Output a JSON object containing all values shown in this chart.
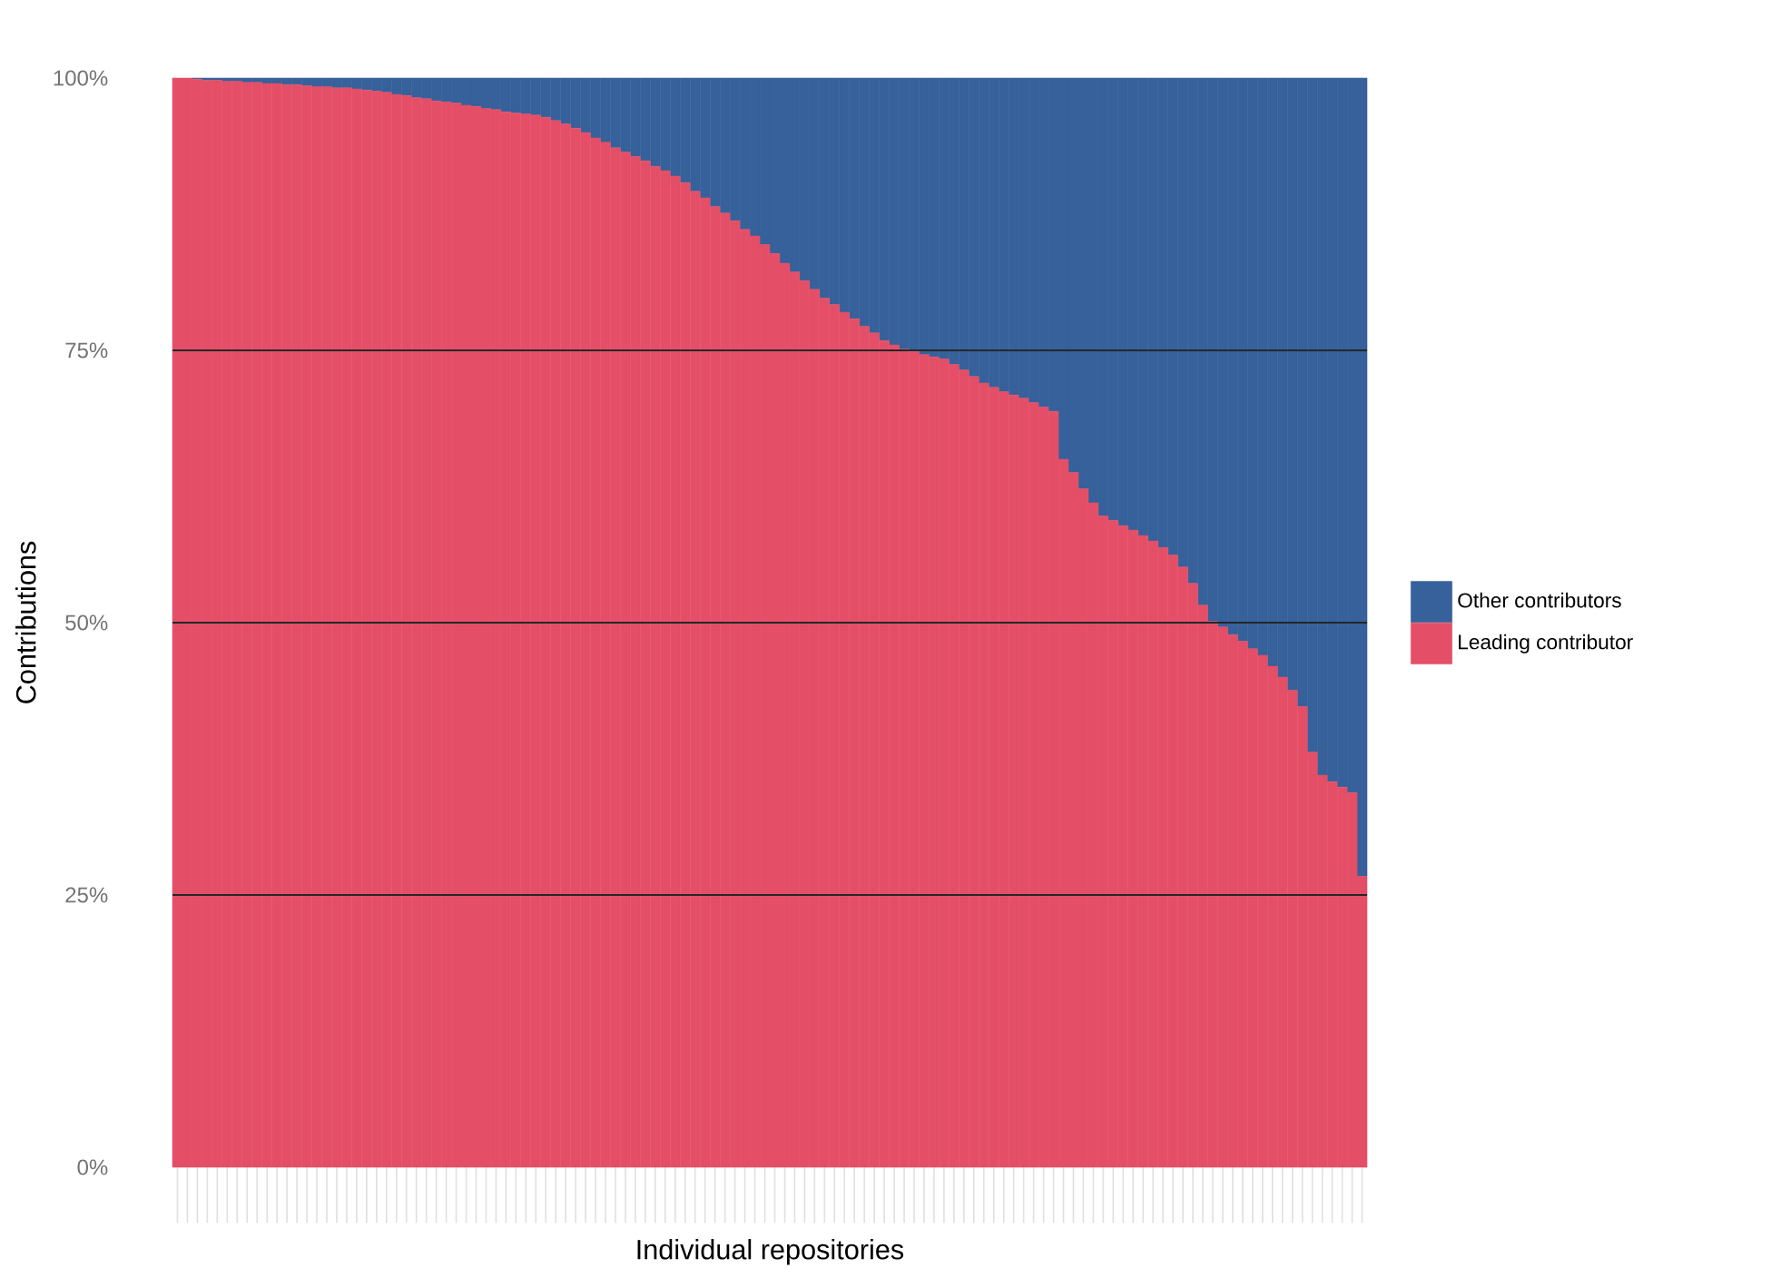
{
  "chart_data": {
    "type": "bar",
    "stacked": true,
    "xlabel": "Individual repositories",
    "ylabel": "Contributions",
    "categories": [
      null,
      null,
      null,
      null,
      null,
      null,
      null,
      null,
      null,
      null,
      null,
      null,
      null,
      null,
      null,
      null,
      null,
      null,
      null,
      null,
      null,
      null,
      null,
      null,
      null,
      null,
      null,
      null,
      null,
      null,
      null,
      null,
      null,
      null,
      null,
      null,
      null,
      null,
      null,
      null,
      null,
      null,
      null,
      null,
      null,
      null,
      null,
      null,
      null,
      null,
      null,
      null,
      null,
      null,
      null,
      null,
      null,
      null,
      null,
      null,
      null,
      null,
      null,
      null,
      null,
      null,
      null,
      null,
      null,
      null,
      null,
      null,
      null,
      null,
      null,
      null,
      null,
      null,
      null,
      null,
      null,
      null,
      null,
      null,
      null,
      null,
      null,
      null,
      null,
      null,
      null,
      null,
      null,
      null,
      null,
      null,
      null,
      null,
      null,
      null,
      null,
      null,
      null,
      null,
      null,
      null,
      null,
      null,
      null,
      null,
      null,
      null,
      null,
      null,
      null,
      null,
      null,
      null,
      null,
      null
    ],
    "series": [
      {
        "name": "Leading contributor",
        "color": "#e44f67",
        "values": [
          100,
          100,
          99.9,
          99.8,
          99.8,
          99.7,
          99.7,
          99.6,
          99.6,
          99.5,
          99.5,
          99.4,
          99.4,
          99.3,
          99.2,
          99.2,
          99.1,
          99.1,
          99.0,
          98.9,
          98.8,
          98.7,
          98.5,
          98.4,
          98.2,
          98.1,
          97.9,
          97.8,
          97.7,
          97.5,
          97.4,
          97.2,
          97.1,
          96.9,
          96.8,
          96.7,
          96.6,
          96.4,
          96.1,
          95.8,
          95.4,
          95.0,
          94.5,
          94.1,
          93.6,
          93.2,
          92.8,
          92.4,
          91.9,
          91.5,
          91.0,
          90.4,
          89.6,
          89.0,
          88.2,
          87.6,
          86.9,
          86.1,
          85.5,
          84.7,
          83.9,
          83.0,
          82.2,
          81.4,
          80.6,
          79.8,
          79.2,
          78.5,
          77.9,
          77.2,
          76.6,
          75.9,
          75.5,
          75.1,
          74.9,
          74.6,
          74.4,
          74.2,
          73.7,
          73.2,
          72.6,
          72.0,
          71.6,
          71.2,
          70.9,
          70.6,
          70.2,
          69.8,
          69.4,
          65.0,
          63.8,
          62.3,
          61.0,
          59.8,
          59.4,
          58.9,
          58.5,
          58.0,
          57.5,
          56.9,
          56.2,
          55.1,
          53.6,
          51.6,
          50.1,
          49.6,
          48.9,
          48.3,
          47.6,
          47.0,
          46.0,
          45.0,
          43.8,
          42.3,
          38.1,
          36.0,
          35.4,
          34.9,
          34.4,
          26.7
        ]
      },
      {
        "name": "Other contributors",
        "color": "#36619a",
        "values": [
          0,
          0,
          0.1,
          0.2,
          0.2,
          0.3,
          0.3,
          0.4,
          0.4,
          0.5,
          0.5,
          0.6,
          0.6,
          0.7,
          0.8,
          0.8,
          0.9,
          0.9,
          1.0,
          1.1,
          1.2,
          1.3,
          1.5,
          1.6,
          1.8,
          1.9,
          2.1,
          2.2,
          2.3,
          2.5,
          2.6,
          2.8,
          2.9,
          3.1,
          3.2,
          3.3,
          3.4,
          3.6,
          3.9,
          4.2,
          4.6,
          5.0,
          5.5,
          5.9,
          6.4,
          6.8,
          7.2,
          7.6,
          8.1,
          8.5,
          9.0,
          9.6,
          10.4,
          11.0,
          11.8,
          12.4,
          13.1,
          13.9,
          14.5,
          15.3,
          16.1,
          17.0,
          17.8,
          18.6,
          19.4,
          20.2,
          20.8,
          21.5,
          22.1,
          22.8,
          23.4,
          24.1,
          24.5,
          24.9,
          25.1,
          25.4,
          25.6,
          25.8,
          26.3,
          26.8,
          27.4,
          28.0,
          28.4,
          28.8,
          29.1,
          29.4,
          29.8,
          30.2,
          30.6,
          35.0,
          36.2,
          37.7,
          39.0,
          40.2,
          40.6,
          41.1,
          41.5,
          42.0,
          42.5,
          43.1,
          43.8,
          44.9,
          46.4,
          48.4,
          49.9,
          50.4,
          51.1,
          51.7,
          52.4,
          53.0,
          54.0,
          55.0,
          56.2,
          57.7,
          61.9,
          64.0,
          64.6,
          65.1,
          65.6,
          73.3
        ]
      }
    ],
    "ylim": [
      0,
      100
    ],
    "yticks": [
      {
        "value": 0,
        "label": "0%"
      },
      {
        "value": 25,
        "label": "25%"
      },
      {
        "value": 50,
        "label": "50%"
      },
      {
        "value": 75,
        "label": "75%"
      },
      {
        "value": 100,
        "label": "100%"
      }
    ],
    "grid": "y",
    "legend": "right"
  }
}
